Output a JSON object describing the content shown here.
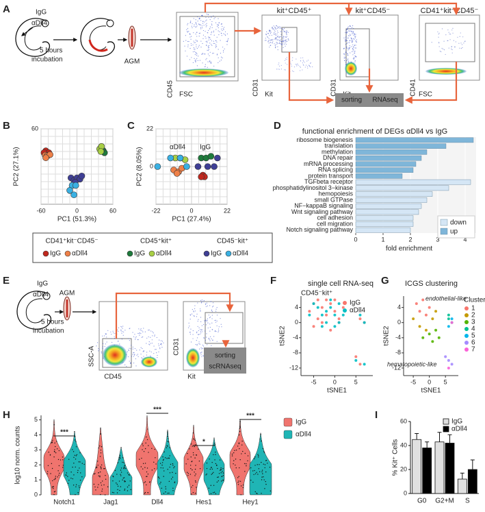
{
  "panels": {
    "labels": [
      "A",
      "B",
      "C",
      "D",
      "E",
      "F",
      "G",
      "H",
      "I"
    ],
    "a": {
      "treatment": [
        "IgG",
        "αDll4"
      ],
      "incubation": [
        "5 hours",
        "incubation"
      ],
      "tissue": "AGM",
      "plots": [
        {
          "y": "CD45",
          "x": "FSC"
        },
        {
          "title": "kit⁺CD45⁺",
          "y": "CD31",
          "x": "Kit"
        },
        {
          "title": "kit⁺CD45⁻",
          "y": "CD31",
          "x": "Kit"
        },
        {
          "title": "CD41⁺kit⁻CD45⁻",
          "y": "CD41",
          "x": "FSC"
        }
      ],
      "sort": [
        "sorting",
        "RNAseq"
      ]
    },
    "pca_legend": [
      {
        "title": "CD41⁺kit⁻CD45⁻",
        "items": [
          {
            "name": "IgG",
            "color": "#c0281e"
          },
          {
            "name": "αDll4",
            "color": "#ee8048"
          }
        ]
      },
      {
        "title": "CD45⁺kit⁺",
        "items": [
          {
            "name": "IgG",
            "color": "#1e7a3c"
          },
          {
            "name": "αDll4",
            "color": "#a8cf45"
          }
        ]
      },
      {
        "title": "CD45⁻kit⁺",
        "items": [
          {
            "name": "IgG",
            "color": "#3f3f95"
          },
          {
            "name": "αDll4",
            "color": "#3ab0e2"
          }
        ]
      }
    ],
    "e": {
      "treatment": [
        "IgG",
        "αDll4"
      ],
      "incubation": [
        "5 hours",
        "incubation"
      ],
      "tissue": "AGM",
      "plots": [
        {
          "y": "SSC-A",
          "x": "CD45"
        },
        {
          "y": "CD31",
          "x": "Kit"
        }
      ],
      "sort": [
        "sorting",
        "scRNAseq"
      ]
    }
  },
  "chart_data": [
    {
      "type": "scatter",
      "xlabel": "PC1 (51.3%)",
      "ylabel": "PC2 (27.1%)",
      "xlim": [
        -60,
        60
      ],
      "ylim": [
        -60,
        60
      ],
      "xticks": [
        -60,
        0,
        60
      ],
      "yticks": [
        60
      ],
      "grid": true,
      "series": [
        {
          "color": "#c0281e",
          "x": [
            -52,
            -50,
            -47,
            -55,
            -48
          ],
          "y": [
            25,
            20,
            22,
            22,
            18
          ]
        },
        {
          "color": "#ee8048",
          "x": [
            -53,
            -50,
            -45,
            -52
          ],
          "y": [
            18,
            17,
            19,
            14
          ]
        },
        {
          "color": "#1e7a3c",
          "x": [
            40,
            44,
            46,
            42
          ],
          "y": [
            30,
            25,
            22,
            27
          ]
        },
        {
          "color": "#a8cf45",
          "x": [
            38,
            41,
            40
          ],
          "y": [
            28,
            32,
            24
          ]
        },
        {
          "color": "#3f3f95",
          "x": [
            -10,
            -5,
            0,
            5,
            8,
            -3
          ],
          "y": [
            -18,
            -22,
            -18,
            -20,
            -15,
            -25
          ]
        },
        {
          "color": "#3ab0e2",
          "x": [
            -8,
            -12,
            -2,
            -5
          ],
          "y": [
            -30,
            -38,
            -30,
            -45
          ]
        }
      ]
    },
    {
      "type": "scatter",
      "xlabel": "PC1 (27.4%)",
      "ylabel": "PC2 (8.05%)",
      "xlim": [
        -22,
        22
      ],
      "ylim": [
        -22,
        22
      ],
      "xticks": [
        -22,
        0,
        22
      ],
      "yticks": [
        22,
        0
      ],
      "grid": true,
      "annotations": [
        "αDll4",
        "IgG"
      ],
      "series": [
        {
          "color": "#c0281e",
          "x": [
            7,
            8,
            6
          ],
          "y": [
            -5,
            -6,
            -6
          ]
        },
        {
          "color": "#ee8048",
          "x": [
            -11,
            -8,
            -6,
            -9
          ],
          "y": [
            -2,
            -3,
            -1,
            -4
          ]
        },
        {
          "color": "#1e7a3c",
          "x": [
            6,
            9,
            12
          ],
          "y": [
            5,
            5,
            6
          ]
        },
        {
          "color": "#a8cf45",
          "x": [
            -10,
            -7,
            -4
          ],
          "y": [
            5,
            5,
            4
          ]
        },
        {
          "color": "#3f3f95",
          "x": [
            4,
            10,
            14,
            16
          ],
          "y": [
            0,
            0,
            0,
            5
          ]
        },
        {
          "color": "#3ab0e2",
          "x": [
            -21,
            -13,
            -7,
            -3
          ],
          "y": [
            0,
            5,
            5,
            0
          ]
        }
      ]
    },
    {
      "type": "hbar",
      "title": "functional enrichment of DEGs αDll4 vs IgG",
      "xlabel": "fold enrichment",
      "xlim": [
        0,
        4.4
      ],
      "xticks": [
        0,
        1,
        2,
        3,
        4
      ],
      "categories": [
        "ribosome biogenesis",
        "translation",
        "methylation",
        "DNA repair",
        "mRNA processing",
        "RNA splicing",
        "protein transport",
        "TGFbeta receptor",
        "phosphatidylinositol 3−kinase",
        "hemopoiesis",
        "small GTPase",
        "NF−kappaB signaling",
        "Wnt signaling pathway",
        "cell adhesion",
        "cell migration",
        "Notch signaling pathway"
      ],
      "label_colors": [
        "#222",
        "#222",
        "#222",
        "#222",
        "#222",
        "#222",
        "#222",
        "#222",
        "#222",
        "#222",
        "#222",
        "#222",
        "#222",
        "#222",
        "#222",
        "#e53b2c"
      ],
      "series": [
        {
          "name": "down",
          "color": "#d5e6f5",
          "values": [
            null,
            null,
            null,
            null,
            null,
            null,
            null,
            4.2,
            3.4,
            2.8,
            2.6,
            2.4,
            2.3,
            2.1,
            2.1,
            2.0
          ]
        },
        {
          "name": "up",
          "color": "#7fb6d9",
          "values": [
            4.3,
            3.3,
            2.6,
            2.4,
            2.2,
            2.1,
            1.7,
            null,
            null,
            null,
            null,
            null,
            null,
            null,
            null,
            null
          ]
        }
      ]
    },
    {
      "type": "scatter",
      "title": "single cell RNA-seq",
      "subtitle": "CD45⁻kit⁺",
      "xlabel": "tSNE1",
      "ylabel": "tSNE2",
      "xlim": [
        -8,
        9
      ],
      "ylim": [
        -14,
        7
      ],
      "xticks": [
        -5,
        0,
        5
      ],
      "yticks": [
        4,
        0,
        -4,
        -8,
        -12
      ],
      "grid": false,
      "series": [
        {
          "name": "IgG",
          "color": "#f8766d",
          "x": [
            -6,
            -5,
            -4,
            -3,
            -2,
            -1,
            0,
            1,
            2,
            -5,
            -3,
            -1,
            1,
            -4,
            -2,
            0,
            6,
            7,
            5,
            6
          ],
          "y": [
            3,
            5,
            1,
            4,
            2,
            5,
            3,
            1,
            4,
            -1,
            0,
            -2,
            0,
            6,
            6,
            6,
            1,
            0,
            -9,
            -11
          ]
        },
        {
          "name": "αDll4",
          "color": "#00bfc4",
          "x": [
            -6,
            -4,
            -3,
            -2,
            -1,
            0,
            1,
            2,
            -5,
            -2,
            0,
            -3,
            -1,
            1,
            7,
            6,
            5,
            7
          ],
          "y": [
            2,
            4,
            -1,
            3,
            6,
            2,
            5,
            2,
            5,
            0,
            -1,
            2,
            4,
            0,
            0,
            2,
            -10,
            -11
          ]
        }
      ]
    },
    {
      "type": "scatter",
      "title": "ICGS clustering",
      "xlabel": "tSNE1",
      "ylabel": "tSNE2",
      "legend_title": "Cluster",
      "annotations": [
        "endothelial-like",
        "hematopoietic-like"
      ],
      "xlim": [
        -8,
        9
      ],
      "ylim": [
        -14,
        7
      ],
      "xticks": [
        -5,
        0,
        5
      ],
      "yticks": [
        4,
        0,
        -4,
        -8,
        -12
      ],
      "grid": false,
      "series": [
        {
          "name": "1",
          "color": "#f8766d",
          "x": [
            -4,
            -2,
            0,
            -1,
            -3
          ],
          "y": [
            5,
            6,
            4,
            2,
            3
          ]
        },
        {
          "name": "2",
          "color": "#c49a00",
          "x": [
            -5,
            -3,
            1,
            2,
            -1
          ],
          "y": [
            1,
            -1,
            1,
            3,
            -2
          ]
        },
        {
          "name": "3",
          "color": "#53b400",
          "x": [
            -2,
            0,
            1,
            2,
            3
          ],
          "y": [
            -4,
            -3,
            -5,
            -2,
            -4
          ]
        },
        {
          "name": "4",
          "color": "#00c094",
          "x": [
            6,
            7,
            6
          ],
          "y": [
            1,
            0,
            2
          ]
        },
        {
          "name": "5",
          "color": "#00b6eb",
          "x": [
            6,
            7
          ],
          "y": [
            -1,
            1
          ]
        },
        {
          "name": "6",
          "color": "#a58aff",
          "x": [
            5,
            6,
            7
          ],
          "y": [
            -9,
            -10,
            -11
          ]
        },
        {
          "name": "7",
          "color": "#fb61d7",
          "x": [
            7,
            6
          ],
          "y": [
            0,
            -12
          ]
        }
      ]
    },
    {
      "type": "violin",
      "ylabel": "log10 norm. counts",
      "ylim": [
        0,
        5.3
      ],
      "yticks": [
        0,
        1,
        2,
        3,
        4,
        5
      ],
      "categories": [
        "Notch1",
        "Jag1",
        "Dll4",
        "Hes1",
        "Hey1"
      ],
      "series": [
        {
          "name": "IgG",
          "color": "#f0746e"
        },
        {
          "name": "αDll4",
          "color": "#1fb5b5"
        }
      ],
      "significance": [
        "***",
        null,
        "***",
        "*",
        "***"
      ]
    },
    {
      "type": "bar",
      "ylabel": "% Kit⁺ Cells",
      "ylim": [
        0,
        60
      ],
      "yticks": [
        0,
        20,
        40,
        60
      ],
      "categories": [
        "G0",
        "G2+M",
        "S"
      ],
      "series": [
        {
          "name": "IgG",
          "color": "#e0e0e0",
          "values": [
            45,
            43,
            12
          ],
          "errors": [
            5,
            8,
            5
          ]
        },
        {
          "name": "αDll4",
          "color": "#000000",
          "values": [
            38,
            42,
            20
          ],
          "errors": [
            5,
            7,
            8
          ]
        }
      ]
    }
  ]
}
